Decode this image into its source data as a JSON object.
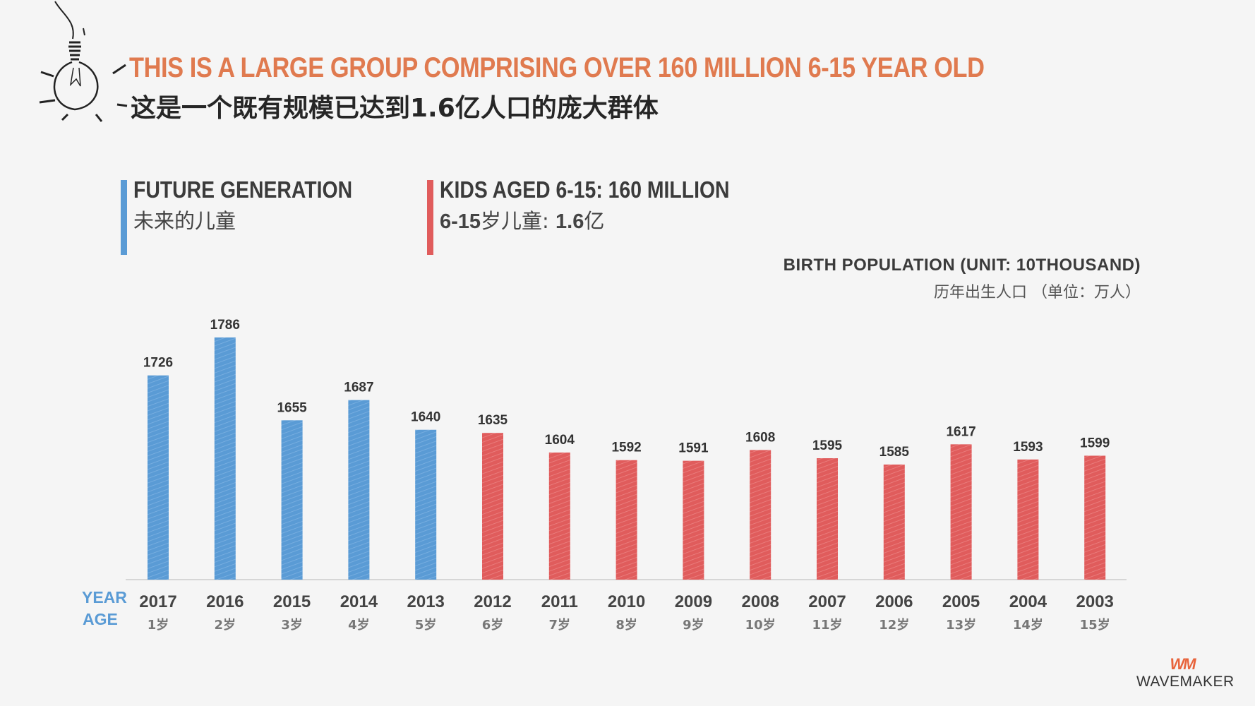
{
  "headline": {
    "en": "THIS IS A LARGE GROUP COMPRISING OVER 160 MILLION 6-15 YEAR OLD",
    "zh": "这是一个既有规模已达到1.6亿人口的庞大群体"
  },
  "legend": {
    "future": {
      "title": "FUTURE GENERATION",
      "sub": "未来的儿童",
      "color": "#5a9bd5"
    },
    "kids": {
      "title": "KIDS AGED 6-15: 160 MILLION",
      "sub_num": "6-15",
      "sub_mid": "岁儿童: ",
      "sub_val": "1.6",
      "sub_end": "亿",
      "color": "#e05c5c"
    }
  },
  "unit": {
    "en": "BIRTH POPULATION (UNIT: 10THOUSAND)",
    "zh": "历年出生人口 （单位：万人）"
  },
  "axis_labels": {
    "year": "YEAR",
    "age": "AGE"
  },
  "logo": {
    "mark": "WM",
    "text": "WAVEMAKER"
  },
  "chart_data": {
    "type": "bar",
    "title": "BIRTH POPULATION (UNIT: 10THOUSAND)",
    "categories": [
      "2017",
      "2016",
      "2015",
      "2014",
      "2013",
      "2012",
      "2011",
      "2010",
      "2009",
      "2008",
      "2007",
      "2006",
      "2005",
      "2004",
      "2003"
    ],
    "ages": [
      "1岁",
      "2岁",
      "3岁",
      "4岁",
      "5岁",
      "6岁",
      "7岁",
      "8岁",
      "9岁",
      "10岁",
      "11岁",
      "12岁",
      "13岁",
      "14岁",
      "15岁"
    ],
    "values": [
      1726,
      1786,
      1655,
      1687,
      1640,
      1635,
      1604,
      1592,
      1591,
      1608,
      1595,
      1585,
      1617,
      1593,
      1599
    ],
    "groups": [
      "future",
      "future",
      "future",
      "future",
      "future",
      "kids",
      "kids",
      "kids",
      "kids",
      "kids",
      "kids",
      "kids",
      "kids",
      "kids",
      "kids"
    ],
    "colors": {
      "future": "#5a9bd5",
      "kids": "#e05c5c"
    },
    "xlabel": "YEAR / AGE",
    "ylabel": "",
    "ylim": [
      1400,
      1800
    ],
    "grid": false
  }
}
